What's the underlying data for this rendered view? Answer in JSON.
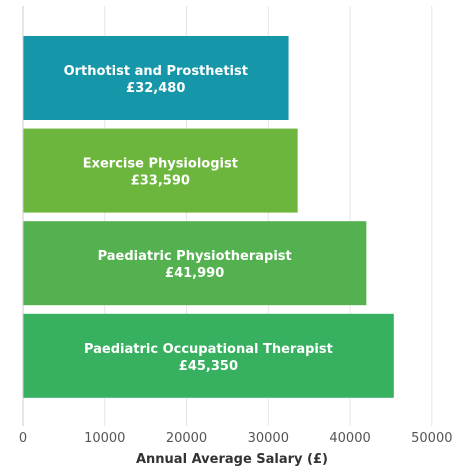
{
  "chart_data": {
    "type": "bar",
    "orientation": "horizontal",
    "categories": [
      "Orthotist and Prosthetist",
      "Exercise Physiologist",
      "Paediatric Physiotherapist",
      "Paediatric Occupational Therapist"
    ],
    "values": [
      32480,
      33590,
      41990,
      45350
    ],
    "value_labels": [
      "£32,480",
      "£33,590",
      "£41,990",
      "£45,350"
    ],
    "colors": [
      "#1597a9",
      "#6db63e",
      "#53b24f",
      "#37b160"
    ],
    "xlabel": "Annual Average Salary (£)",
    "ylabel": "",
    "title": "",
    "xlim": [
      0,
      51000
    ],
    "xticks": [
      0,
      10000,
      20000,
      30000,
      40000,
      50000
    ],
    "xtick_labels": [
      "0",
      "10000",
      "20000",
      "30000",
      "40000",
      "50000"
    ],
    "grid": "vertical",
    "legend": "none"
  }
}
